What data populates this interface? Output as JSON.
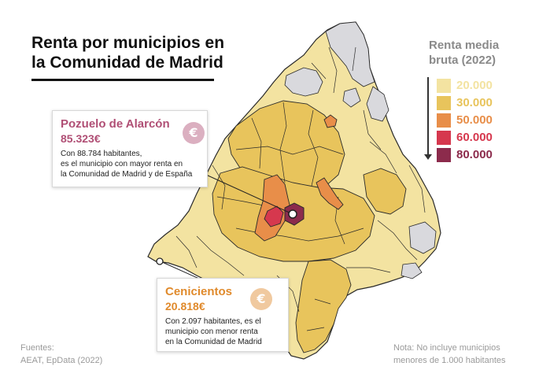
{
  "title": "Renta por municipios en la Comunidad de Madrid",
  "legend": {
    "title": "Renta media bruta (2022)",
    "items": [
      {
        "label": "20.000",
        "color": "#f3e3a1"
      },
      {
        "label": "30.000",
        "color": "#e8c45c"
      },
      {
        "label": "50.000",
        "color": "#e88e49"
      },
      {
        "label": "60.000",
        "color": "#d6384e"
      },
      {
        "label": "80.000",
        "color": "#8c2b4c"
      }
    ]
  },
  "no_data_color": "#d9d9dd",
  "callouts": {
    "max": {
      "name": "Pozuelo de Alarcón",
      "value": "85.323€",
      "line1": "Con 88.784 habitantes,",
      "line2": "es el municipio con mayor renta en",
      "line3": "la Comunidad de Madrid y de España",
      "accent": "#b04f75",
      "icon": "euro-icon"
    },
    "min": {
      "name": "Cenicientos",
      "value": "20.818€",
      "line1": "Con 2.097 habitantes, es el",
      "line2": "municipio con menor renta",
      "line3": "en la Comunidad de Madrid",
      "accent": "#e08a2c",
      "icon": "euro-icon"
    }
  },
  "sources": {
    "label": "Fuentes:",
    "text": "AEAT, EpData (2022)"
  },
  "note": {
    "line1": "Nota: No incluye municipios",
    "line2": "menores de 1.000 habitantes"
  }
}
